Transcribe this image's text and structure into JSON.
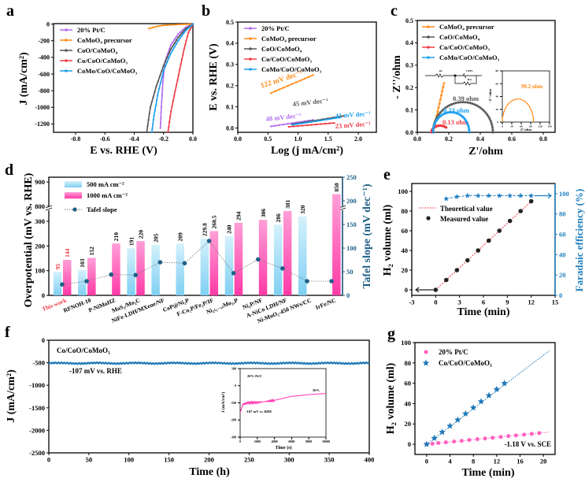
{
  "panels": {
    "a": "a",
    "b": "b",
    "c": "c",
    "d": "d",
    "e": "e",
    "f": "f",
    "g": "g"
  },
  "colors": {
    "pt": "#b36bf0",
    "precursor": "#ff8c1a",
    "coo": "#555555",
    "co": "#f03c46",
    "como": "#1ea0f0",
    "bar500": "#8fd6f4",
    "bar1000": "#ff4fb0",
    "tafel": "#1f5f86",
    "fe": "#1f7fc0",
    "ptc_g": "#ff5fc0",
    "co_g": "#1f78b8"
  },
  "chart_data": [
    {
      "type": "line",
      "panel": "a",
      "xlabel": "E vs. RHE (V)",
      "ylabel": "J (mA/cm²)",
      "xlim": [
        -0.95,
        0
      ],
      "ylim": [
        -1300,
        5
      ],
      "xticks": [
        "-0.8",
        "-0.6",
        "-0.4",
        "-0.2",
        "0.0"
      ],
      "xtick_values": [
        -0.8,
        -0.6,
        -0.4,
        -0.2,
        0
      ],
      "yticks": [
        "0",
        "-200",
        "-400",
        "-600",
        "-800",
        "-1000",
        "-1200"
      ],
      "ytick_values": [
        0,
        -200,
        -400,
        -600,
        -800,
        -1000,
        -1200
      ],
      "legend": "top-left",
      "series": [
        {
          "name": "20% Pt/C",
          "color": "#b36bf0",
          "points": [
            [
              0,
              0
            ],
            [
              -0.05,
              -40
            ],
            [
              -0.1,
              -120
            ],
            [
              -0.15,
              -250
            ],
            [
              -0.19,
              -450
            ],
            [
              -0.205,
              -700
            ],
            [
              -0.215,
              -1000
            ],
            [
              -0.222,
              -1250
            ]
          ]
        },
        {
          "name": "CoMoO₄ precursor",
          "color": "#ff8c1a",
          "points": [
            [
              -0.3,
              -55
            ],
            [
              -0.25,
              -30
            ],
            [
              -0.2,
              -15
            ],
            [
              -0.1,
              -5
            ],
            [
              0,
              0
            ]
          ]
        },
        {
          "name": "CoO/CoMoO₄",
          "color": "#555555",
          "points": [
            [
              0,
              0
            ],
            [
              -0.05,
              -60
            ],
            [
              -0.1,
              -160
            ],
            [
              -0.15,
              -300
            ],
            [
              -0.2,
              -500
            ],
            [
              -0.25,
              -750
            ],
            [
              -0.29,
              -1000
            ],
            [
              -0.315,
              -1300
            ]
          ]
        },
        {
          "name": "Co/CoO/CoMoO₃",
          "color": "#f03c46",
          "points": [
            [
              0,
              0
            ],
            [
              -0.03,
              -100
            ],
            [
              -0.06,
              -300
            ],
            [
              -0.09,
              -550
            ],
            [
              -0.12,
              -800
            ],
            [
              -0.15,
              -1050
            ],
            [
              -0.17,
              -1300
            ]
          ]
        },
        {
          "name": "CoMo/CoO/CoMoO₃",
          "color": "#1ea0f0",
          "points": [
            [
              0,
              0
            ],
            [
              -0.05,
              -80
            ],
            [
              -0.1,
              -200
            ],
            [
              -0.15,
              -350
            ],
            [
              -0.2,
              -560
            ],
            [
              -0.24,
              -850
            ],
            [
              -0.265,
              -1100
            ],
            [
              -0.28,
              -1300
            ]
          ]
        }
      ]
    },
    {
      "type": "line",
      "panel": "b",
      "xlabel": "Log (j mA/cm²)",
      "ylabel": "E vs. RHE (V)",
      "xlim": [
        0,
        2.3
      ],
      "ylim": [
        -0.02,
        0.5
      ],
      "xticks": [
        "0.0",
        "0.5",
        "1.0",
        "1.5",
        "2.0"
      ],
      "xtick_values": [
        0,
        0.5,
        1,
        1.5,
        2
      ],
      "yticks": [
        "0.0",
        "0.1",
        "0.2",
        "0.3",
        "0.4",
        "0.5"
      ],
      "ytick_values": [
        0,
        0.1,
        0.2,
        0.3,
        0.4,
        0.5
      ],
      "legend": "top-left",
      "series": [
        {
          "name": "20% Pt/C",
          "color": "#b36bf0",
          "points": [
            [
              0.55,
              0.008
            ],
            [
              1.25,
              0.038
            ]
          ],
          "annotation": "48 mV dec⁻¹"
        },
        {
          "name": "CoMoO₄ precursor",
          "color": "#ff8c1a",
          "points": [
            [
              0.55,
              0.165
            ],
            [
              1.25,
              0.25
            ]
          ],
          "annotation": "122 mV dec⁻¹"
        },
        {
          "name": "CoO/CoMoO₄",
          "color": "#555555",
          "points": [
            [
              0.9,
              0.018
            ],
            [
              1.75,
              0.057
            ]
          ],
          "annotation": "45 mV dec⁻¹"
        },
        {
          "name": "Co/CoO/CoMoO₃",
          "color": "#f03c46",
          "points": [
            [
              0.85,
              0.006
            ],
            [
              1.6,
              0.024
            ]
          ],
          "annotation": "23 mV dec⁻¹"
        },
        {
          "name": "CoMo/CoO/CoMoO₃",
          "color": "#1ea0f0",
          "points": [
            [
              0.9,
              0.015
            ],
            [
              1.7,
              0.05
            ]
          ],
          "annotation": "41 mV dec⁻¹"
        }
      ]
    },
    {
      "type": "scatter",
      "panel": "c",
      "xlabel": "Z'/ohm",
      "ylabel": "- Z''/ohm",
      "xlim": [
        0,
        0.875
      ],
      "ylim": [
        0,
        0.5
      ],
      "xticks": [
        "0.0",
        "0.2",
        "0.4",
        "0.6",
        "0.8"
      ],
      "xtick_values": [
        0,
        0.2,
        0.4,
        0.6,
        0.8
      ],
      "yticks": [
        "0.0",
        "0.1",
        "0.2",
        "0.3",
        "0.4",
        "0.5"
      ],
      "ytick_values": [
        0,
        0.1,
        0.2,
        0.3,
        0.4,
        0.5
      ],
      "legend": "top-left",
      "circuit": {
        "labels": [
          "Rs",
          "CPE1",
          "Rct"
        ]
      },
      "series": [
        {
          "name": "CoMoO₄ precursor",
          "color": "#ff8c1a",
          "line": [
            [
              0.1,
              0
            ],
            [
              0.17,
              0.22
            ]
          ]
        },
        {
          "name": "CoO/CoMoO₄",
          "color": "#555555",
          "arc": {
            "start": 0.1,
            "end": 0.48,
            "peak": 0.135
          },
          "annotation": "0.39 ohm"
        },
        {
          "name": "Co/CoO/CoMoO₃",
          "color": "#f03c46",
          "arc": {
            "start": 0.09,
            "end": 0.2,
            "peak": 0.03,
            "partial": 0.75
          },
          "annotation": "0.13 ohm"
        },
        {
          "name": "CoMo/CoO/CoMoO₃",
          "color": "#1ea0f0",
          "arc": {
            "start": 0.1,
            "end": 0.33,
            "peak": 0.09
          },
          "annotation": "0.23 ohm"
        }
      ],
      "inset": {
        "xlabel": "Z'/ohm",
        "ylabel": "- Z''/ohm",
        "xlim": [
          0,
          150
        ],
        "ylim": [
          0,
          80
        ],
        "xticks": [
          "0",
          "30",
          "60",
          "90",
          "120",
          "150"
        ],
        "xtick_values": [
          0,
          30,
          60,
          90,
          120,
          150
        ],
        "yticks": [
          "0",
          "20",
          "40",
          "60",
          "80"
        ],
        "ytick_values": [
          0,
          20,
          40,
          60,
          80
        ],
        "arc": {
          "start": 0,
          "end": 99,
          "peak": 36
        },
        "annotation": "99.2 ohm",
        "color": "#ff8c1a"
      }
    },
    {
      "type": "bar",
      "panel": "d",
      "ylabel": "Overpotential (mV vs. RHE)",
      "y2label": "Tafel slope (mV dec⁻¹)",
      "categories": [
        "This work",
        "RFNOH-10",
        "P-NiMoHZ",
        "MoS₂/Mo₂C",
        "NiFe-LDH/MXene/NF",
        "CoP@Ni₂P",
        "F-Co₂P/Fe₂P/IF",
        "Ni₂₍₁₋ₓ₎Mo₂ₓP",
        "Ni₂P/NF",
        "A-NiCo LDH/NF",
        "Ni-MoO₂-450 NWs/CC",
        "IrFe/NC"
      ],
      "highlight_category": "This work",
      "yticks": [
        "0",
        "100",
        "200",
        "300",
        "800",
        "900"
      ],
      "ytick_values": [
        0,
        100,
        200,
        300,
        800,
        900
      ],
      "y_axis_break": [
        340,
        780
      ],
      "y2ticks": [
        "0",
        "50",
        "100",
        "150",
        "200",
        "250"
      ],
      "y2tick_values": [
        0,
        50,
        100,
        150,
        200,
        250
      ],
      "y2lim": [
        0,
        250
      ],
      "legend": "top-left",
      "series": [
        {
          "name": "500 mA cm⁻²",
          "values": [
            95,
            103,
            null,
            191,
            205,
            209,
            229.8,
            240,
            null,
            286,
            320,
            null
          ],
          "labels": [
            "95",
            "103",
            "",
            "191",
            "205",
            "209",
            "229.8",
            "240",
            "",
            "286",
            "320",
            ""
          ]
        },
        {
          "name": "1000 mA cm⁻²",
          "values": [
            144,
            152,
            210,
            220,
            null,
            null,
            260.5,
            294,
            306,
            381,
            null,
            850
          ],
          "labels": [
            "144",
            "152",
            "210",
            "220",
            "",
            "",
            "260.5",
            "294",
            "306",
            "381",
            "",
            "850"
          ]
        },
        {
          "name": "Tafel slope",
          "axis": "right",
          "values": [
            23,
            30,
            44,
            43,
            70,
            68,
            115,
            47,
            76,
            57,
            30,
            30
          ]
        }
      ]
    },
    {
      "type": "scatter",
      "panel": "e",
      "xlabel": "Time (min)",
      "ylabel": "H₂ volume (ml)",
      "y2label": "Faradaic efficiency (%)",
      "xlim": [
        -3,
        15
      ],
      "ylim": [
        -5.6,
        108
      ],
      "y2lim": [
        0,
        110
      ],
      "xticks": [
        "-3",
        "0",
        "3",
        "6",
        "9",
        "12",
        "15"
      ],
      "xtick_values": [
        -3,
        0,
        3,
        6,
        9,
        12,
        15
      ],
      "yticks": [
        "0",
        "20",
        "40",
        "60",
        "80",
        "100"
      ],
      "ytick_values": [
        0,
        20,
        40,
        60,
        80,
        100
      ],
      "y2ticks": [
        "0",
        "20",
        "40",
        "60",
        "80",
        "100"
      ],
      "y2tick_values": [
        0,
        20,
        40,
        60,
        80,
        100
      ],
      "legend": "top-left",
      "theoretical": {
        "name": "Theoretical value",
        "points": [
          [
            0,
            0
          ],
          [
            12,
            90
          ]
        ]
      },
      "measured": {
        "name": "Measured value",
        "x": [
          0,
          1.33,
          2.67,
          4,
          5.33,
          6.67,
          8,
          9.33,
          10.67,
          12
        ],
        "y": [
          0,
          10,
          20,
          30,
          40,
          50,
          60,
          70,
          80,
          90
        ]
      },
      "faradaic": {
        "x": [
          1.33,
          2.67,
          4,
          5.33,
          6.67,
          8,
          9.33,
          10.67,
          12
        ],
        "y": [
          95,
          97,
          98,
          98,
          98,
          98,
          98,
          98,
          98
        ]
      }
    },
    {
      "type": "line",
      "panel": "f",
      "xlabel": "Time (h)",
      "ylabel": "J (mA/cm²)",
      "xlim": [
        0,
        400
      ],
      "ylim": [
        -2500,
        0
      ],
      "xticks": [
        "0",
        "50",
        "100",
        "150",
        "200",
        "250",
        "300",
        "350",
        "400"
      ],
      "xtick_values": [
        0,
        50,
        100,
        150,
        200,
        250,
        300,
        350,
        400
      ],
      "yticks": [
        "0",
        "-500",
        "-1000",
        "-1500",
        "-2000",
        "-2500"
      ],
      "ytick_values": [
        0,
        -500,
        -1000,
        -1500,
        -2000,
        -2500
      ],
      "title": "Co/CoO/CoMoO₃",
      "annotation": "-107 mV vs. RHE",
      "series": [
        {
          "name": "Co/CoO/CoMoO₃",
          "color": "#1f78b8",
          "mean": -510
        }
      ],
      "inset": {
        "title": "20% Pt/C",
        "annotation": "-107 mV vs. RHE",
        "end_label": "50%",
        "xlabel": "Time (s)",
        "ylabel": "J (mA/cm²)",
        "xlim": [
          0,
          10000
        ],
        "ylim": [
          -300,
          100
        ],
        "xticks": [
          "0",
          "2000",
          "4000",
          "6000",
          "8000",
          "10000"
        ],
        "xtick_values": [
          0,
          2000,
          4000,
          6000,
          8000,
          10000
        ],
        "yticks": [
          "100",
          "0",
          "-100",
          "-200",
          "-300"
        ],
        "ytick_values": [
          100,
          0,
          -100,
          -200,
          -300
        ],
        "color": "#ff3fb8",
        "points": [
          [
            0,
            -160
          ],
          [
            300,
            -110
          ],
          [
            800,
            -100
          ],
          [
            2000,
            -98
          ],
          [
            3000,
            -92
          ],
          [
            4000,
            -85
          ],
          [
            6000,
            -62
          ],
          [
            8000,
            -52
          ],
          [
            10000,
            -45
          ]
        ]
      }
    },
    {
      "type": "scatter",
      "panel": "g",
      "xlabel": "Time (min)",
      "ylabel": "H₂ volume (ml)",
      "xlim": [
        -2,
        22
      ],
      "ylim": [
        -10,
        100
      ],
      "xticks": [
        "0",
        "4",
        "8",
        "12",
        "16",
        "20"
      ],
      "xtick_values": [
        0,
        4,
        8,
        12,
        16,
        20
      ],
      "yticks": [
        "0",
        "20",
        "40",
        "60",
        "80",
        "100"
      ],
      "ytick_values": [
        0,
        20,
        40,
        60,
        80,
        100
      ],
      "annotation": "-1.18 V vs. SCE",
      "legend": "top-left",
      "series": [
        {
          "name": "20% Pt/C",
          "color": "#ff5fc0",
          "x": [
            0,
            1,
            2,
            3.3,
            4.7,
            6,
            7.3,
            8.7,
            10,
            11.3,
            12.7,
            14,
            15.3,
            16.7,
            18,
            19.3
          ],
          "y": [
            0,
            0.6,
            1.2,
            1.9,
            2.7,
            3.4,
            4.2,
            5,
            5.7,
            6.4,
            7.2,
            8,
            8.7,
            9.5,
            10.2,
            11
          ],
          "fit_to": [
            21,
            12
          ]
        },
        {
          "name": "Co/CoO/CoMoO₃",
          "color": "#1f78b8",
          "x": [
            0,
            1.33,
            2.67,
            4,
            5.33,
            6.67,
            8,
            9.33,
            10.67,
            12,
            13.33
          ],
          "y": [
            0,
            6,
            12,
            18,
            24,
            30,
            36,
            42,
            48,
            54,
            60
          ],
          "fit_to": [
            21,
            92
          ]
        }
      ]
    }
  ]
}
